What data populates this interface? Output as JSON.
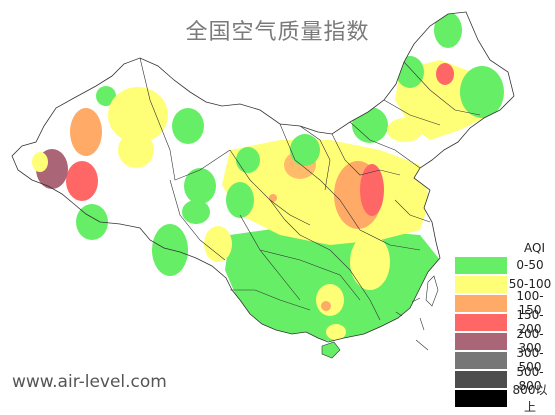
{
  "title": "全国空气质量指数",
  "watermark": "www.air-level.com",
  "legend": {
    "title": "AQI",
    "items": [
      {
        "label": "0-50",
        "color": "#66ee66"
      },
      {
        "label": "50-100",
        "color": "#ffff77"
      },
      {
        "label": "100-150",
        "color": "#ffaa66"
      },
      {
        "label": "150-200",
        "color": "#ff6666"
      },
      {
        "label": "200-300",
        "color": "#aa6677"
      },
      {
        "label": "300-500",
        "color": "#777777"
      },
      {
        "label": "500-800",
        "color": "#4d4d4d"
      },
      {
        "label": "800以上",
        "color": "#000000"
      }
    ]
  }
}
